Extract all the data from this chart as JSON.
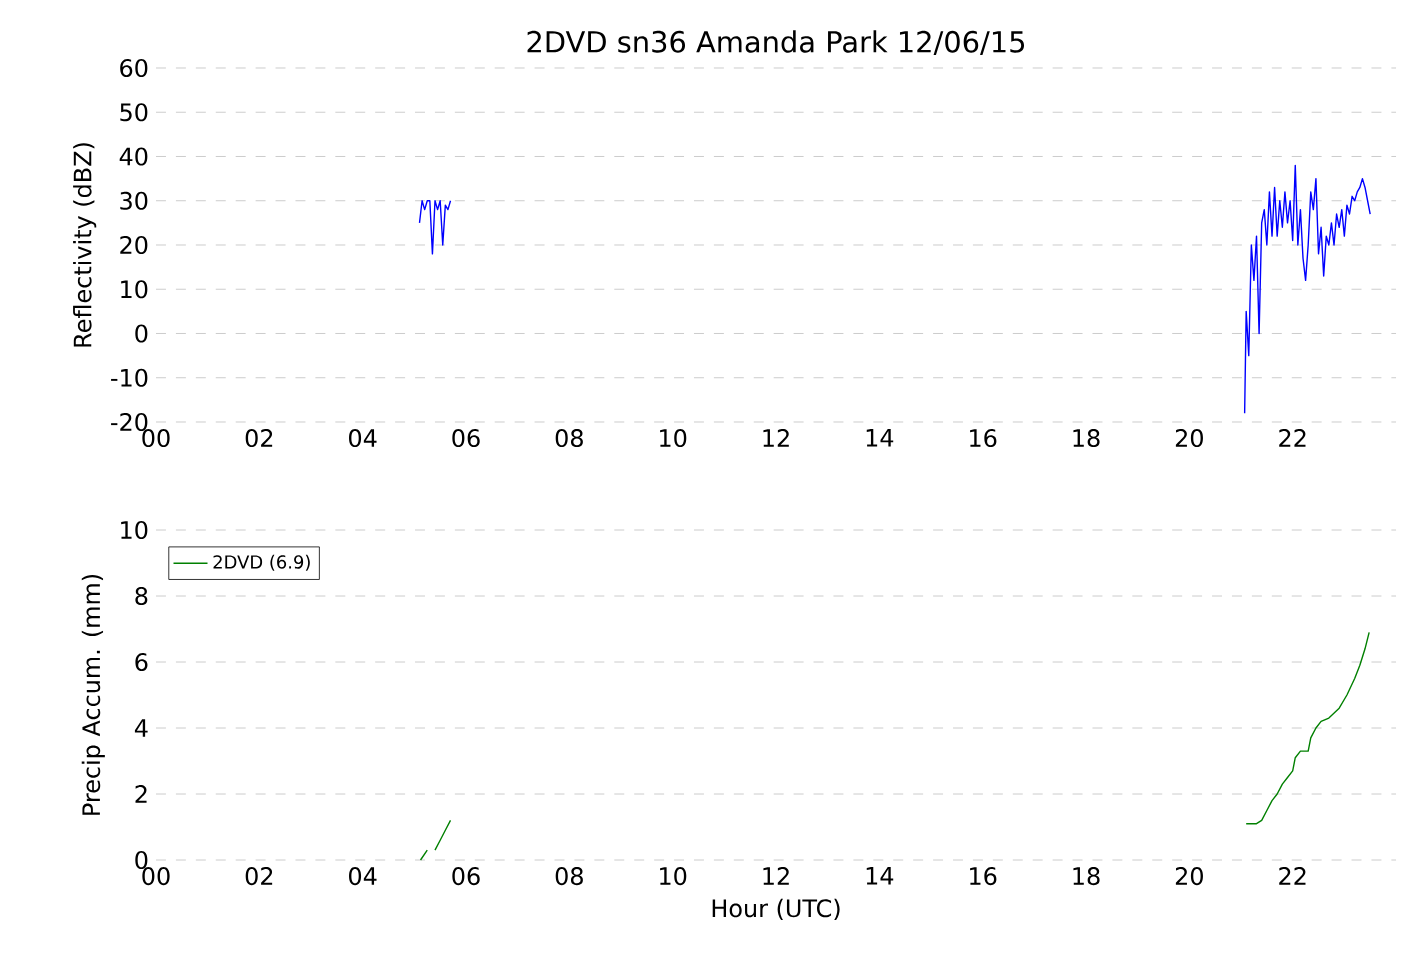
{
  "chart_data": [
    {
      "type": "line",
      "title": "2DVD sn36 Amanda Park 12/06/15",
      "ylabel": "Reflectivity (dBZ)",
      "xlim": [
        0,
        24
      ],
      "ylim": [
        -20,
        60
      ],
      "xticks": [
        {
          "value": 0,
          "label": "00"
        },
        {
          "value": 2,
          "label": "02"
        },
        {
          "value": 4,
          "label": "04"
        },
        {
          "value": 6,
          "label": "06"
        },
        {
          "value": 8,
          "label": "08"
        },
        {
          "value": 10,
          "label": "10"
        },
        {
          "value": 12,
          "label": "12"
        },
        {
          "value": 14,
          "label": "14"
        },
        {
          "value": 16,
          "label": "16"
        },
        {
          "value": 18,
          "label": "18"
        },
        {
          "value": 20,
          "label": "20"
        },
        {
          "value": 22,
          "label": "22"
        }
      ],
      "yticks": [
        -20,
        -10,
        0,
        10,
        20,
        30,
        40,
        50,
        60
      ],
      "grid": "y",
      "legend": false,
      "series": [
        {
          "color": "#0000ff",
          "x": [
            5.1,
            5.15,
            5.2,
            5.25,
            5.3,
            5.35,
            5.4,
            5.45,
            5.5,
            5.55,
            5.6,
            5.65,
            5.7,
            5.75,
            21.0,
            21.07,
            21.1,
            21.15,
            21.2,
            21.25,
            21.3,
            21.35,
            21.4,
            21.45,
            21.5,
            21.55,
            21.6,
            21.65,
            21.7,
            21.75,
            21.8,
            21.85,
            21.9,
            21.95,
            22.0,
            22.05,
            22.1,
            22.15,
            22.2,
            22.25,
            22.3,
            22.35,
            22.4,
            22.45,
            22.5,
            22.55,
            22.6,
            22.65,
            22.7,
            22.75,
            22.8,
            22.85,
            22.9,
            22.95,
            23.0,
            23.05,
            23.1,
            23.15,
            23.2,
            23.25,
            23.3,
            23.35,
            23.4,
            23.45,
            23.5
          ],
          "values": [
            25,
            30,
            28,
            30,
            30,
            18,
            30,
            28,
            30,
            20,
            29,
            28,
            30,
            null,
            null,
            -18,
            5,
            -5,
            20,
            12,
            22,
            0,
            25,
            28,
            20,
            32,
            22,
            33,
            22,
            30,
            24,
            32,
            25,
            30,
            21,
            38,
            20,
            28,
            17,
            12,
            20,
            32,
            28,
            35,
            18,
            24,
            13,
            22,
            20,
            25,
            20,
            27,
            24,
            28,
            22,
            29,
            27,
            31,
            30,
            32,
            33,
            35,
            33,
            30,
            27
          ]
        }
      ]
    },
    {
      "type": "line",
      "xlabel": "Hour (UTC)",
      "ylabel": "Precip Accum. (mm)",
      "xlim": [
        0,
        24
      ],
      "ylim": [
        0,
        10
      ],
      "xticks": [
        {
          "value": 0,
          "label": "00"
        },
        {
          "value": 2,
          "label": "02"
        },
        {
          "value": 4,
          "label": "04"
        },
        {
          "value": 6,
          "label": "06"
        },
        {
          "value": 8,
          "label": "08"
        },
        {
          "value": 10,
          "label": "10"
        },
        {
          "value": 12,
          "label": "12"
        },
        {
          "value": 14,
          "label": "14"
        },
        {
          "value": 16,
          "label": "16"
        },
        {
          "value": 18,
          "label": "18"
        },
        {
          "value": 20,
          "label": "20"
        },
        {
          "value": 22,
          "label": "22"
        }
      ],
      "yticks": [
        0,
        2,
        4,
        6,
        8,
        10
      ],
      "grid": "y",
      "legend": "top left",
      "series": [
        {
          "name": "2DVD (6.9)",
          "color": "#008000",
          "x": [
            5.12,
            5.25,
            5.3,
            5.4,
            5.5,
            5.6,
            5.7,
            20.0,
            21.1,
            21.3,
            21.4,
            21.5,
            21.6,
            21.7,
            21.8,
            21.9,
            22.0,
            22.05,
            22.15,
            22.3,
            22.35,
            22.45,
            22.55,
            22.7,
            22.9,
            23.05,
            23.2,
            23.3,
            23.4,
            23.48
          ],
          "values": [
            0.0,
            0.3,
            null,
            0.3,
            0.6,
            0.9,
            1.2,
            null,
            1.1,
            1.1,
            1.2,
            1.5,
            1.8,
            2.0,
            2.3,
            2.5,
            2.7,
            3.1,
            3.3,
            3.3,
            3.7,
            4.0,
            4.2,
            4.3,
            4.6,
            5.0,
            5.5,
            5.9,
            6.4,
            6.9
          ]
        }
      ]
    }
  ]
}
